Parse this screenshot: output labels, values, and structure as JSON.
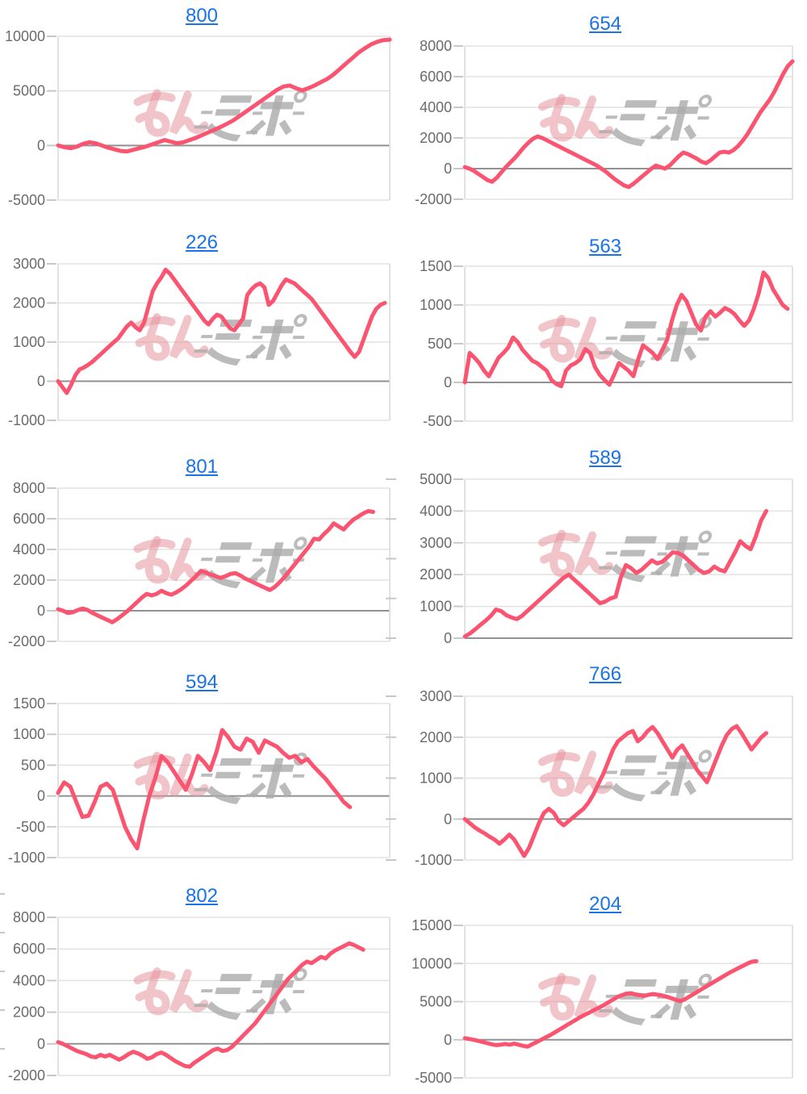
{
  "page": {
    "background": "#ffffff",
    "watermark_text": "みんレポ",
    "description": "grid of slot-machine cumulative payout line charts"
  },
  "colors": {
    "line": "#FA5470",
    "title_link": "#1a73e8",
    "grid": "#e2e2e2",
    "zero_line": "#919191",
    "axis_border": "#dadada",
    "tick": "#c8c8c8",
    "label": "#6b6b6b",
    "watermark_pink": "#e6939e",
    "watermark_gray": "#acacac"
  },
  "chart_data": [
    {
      "type": "line",
      "title": "800",
      "ylim": [
        -5000,
        10000
      ],
      "y_ticks": [
        10000,
        5000,
        0,
        -5000
      ],
      "x_end": 1.0,
      "values": [
        0,
        -150,
        -250,
        -100,
        150,
        300,
        200,
        0,
        -200,
        -350,
        -500,
        -550,
        -400,
        -250,
        -100,
        100,
        300,
        500,
        350,
        200,
        300,
        500,
        700,
        950,
        1200,
        1450,
        1700,
        2000,
        2300,
        2700,
        3100,
        3500,
        3900,
        4300,
        4700,
        5100,
        5400,
        5500,
        5250,
        5050,
        5250,
        5500,
        5800,
        6100,
        6500,
        7000,
        7500,
        8000,
        8500,
        8900,
        9250,
        9500,
        9650,
        9700
      ]
    },
    {
      "type": "line",
      "title": "654",
      "ylim": [
        -2000,
        8000
      ],
      "y_ticks": [
        8000,
        6000,
        4000,
        2000,
        0,
        -2000
      ],
      "x_end": 1.0,
      "values": [
        100,
        0,
        -150,
        -350,
        -550,
        -750,
        -850,
        -600,
        -250,
        100,
        400,
        700,
        1050,
        1400,
        1700,
        1950,
        2100,
        2000,
        1850,
        1700,
        1550,
        1400,
        1250,
        1100,
        950,
        800,
        650,
        500,
        350,
        200,
        0,
        -200,
        -450,
        -700,
        -900,
        -1100,
        -1200,
        -1000,
        -750,
        -500,
        -250,
        0,
        200,
        100,
        0,
        200,
        500,
        800,
        1050,
        950,
        800,
        650,
        450,
        350,
        550,
        800,
        1050,
        1100,
        1050,
        1200,
        1450,
        1800,
        2200,
        2700,
        3200,
        3700,
        4100,
        4500,
        5000,
        5600,
        6200,
        6700,
        7000
      ]
    },
    {
      "type": "line",
      "title": "226",
      "ylim": [
        -1000,
        3000
      ],
      "y_ticks": [
        3000,
        2000,
        1000,
        0,
        -1000
      ],
      "x_end": 0.985,
      "values": [
        0,
        -150,
        -300,
        -100,
        150,
        300,
        350,
        420,
        500,
        600,
        700,
        800,
        900,
        1000,
        1100,
        1250,
        1400,
        1500,
        1380,
        1300,
        1500,
        1900,
        2300,
        2500,
        2650,
        2850,
        2750,
        2600,
        2450,
        2300,
        2150,
        2000,
        1850,
        1700,
        1550,
        1450,
        1600,
        1700,
        1650,
        1500,
        1350,
        1300,
        1450,
        1600,
        2200,
        2350,
        2450,
        2500,
        2400,
        1950,
        2050,
        2250,
        2450,
        2600,
        2550,
        2500,
        2400,
        2300,
        2200,
        2100,
        1950,
        1800,
        1650,
        1500,
        1350,
        1200,
        1050,
        900,
        750,
        620,
        750,
        1050,
        1350,
        1650,
        1850,
        1950,
        2000
      ]
    },
    {
      "type": "line",
      "title": "563",
      "ylim": [
        -500,
        1500
      ],
      "y_ticks": [
        1500,
        1000,
        500,
        0,
        -500
      ],
      "x_end": 0.985,
      "values": [
        0,
        380,
        320,
        250,
        150,
        80,
        200,
        320,
        380,
        450,
        580,
        520,
        420,
        350,
        280,
        250,
        200,
        150,
        30,
        -20,
        -50,
        150,
        220,
        250,
        300,
        430,
        380,
        200,
        100,
        30,
        -30,
        100,
        250,
        200,
        150,
        80,
        300,
        480,
        430,
        380,
        300,
        420,
        550,
        800,
        1000,
        1130,
        1050,
        900,
        750,
        670,
        850,
        920,
        850,
        900,
        960,
        930,
        880,
        800,
        730,
        800,
        950,
        1150,
        1420,
        1350,
        1200,
        1100,
        1000,
        950
      ]
    },
    {
      "type": "line",
      "title": "801",
      "ylim": [
        -2000,
        8000
      ],
      "y_ticks": [
        8000,
        6000,
        4000,
        2000,
        0,
        -2000
      ],
      "x_end": 0.95,
      "values": [
        100,
        0,
        -150,
        -100,
        50,
        150,
        50,
        -150,
        -300,
        -450,
        -600,
        -750,
        -550,
        -300,
        -50,
        250,
        550,
        850,
        1100,
        1000,
        1100,
        1300,
        1150,
        1050,
        1200,
        1400,
        1650,
        1950,
        2250,
        2600,
        2500,
        2350,
        2250,
        2150,
        2250,
        2400,
        2450,
        2300,
        2100,
        1950,
        1800,
        1650,
        1500,
        1350,
        1550,
        1850,
        2200,
        2600,
        3000,
        3400,
        3800,
        4200,
        4700,
        4650,
        5000,
        5300,
        5700,
        5500,
        5300,
        5650,
        5950,
        6150,
        6350,
        6500,
        6450
      ]
    },
    {
      "type": "line",
      "title": "589",
      "ylim": [
        0,
        5000
      ],
      "y_ticks": [
        5000,
        4000,
        3000,
        2000,
        1000,
        0
      ],
      "x_end": 0.92,
      "values": [
        50,
        150,
        280,
        420,
        550,
        700,
        900,
        850,
        720,
        650,
        600,
        700,
        850,
        1000,
        1150,
        1300,
        1450,
        1600,
        1750,
        1900,
        2000,
        1850,
        1700,
        1550,
        1400,
        1250,
        1100,
        1150,
        1250,
        1300,
        1900,
        2300,
        2200,
        2050,
        2150,
        2300,
        2450,
        2350,
        2400,
        2550,
        2700,
        2680,
        2600,
        2450,
        2300,
        2150,
        2050,
        2100,
        2250,
        2150,
        2100,
        2400,
        2700,
        3050,
        2900,
        2800,
        3200,
        3700,
        4000
      ]
    },
    {
      "type": "line",
      "title": "594",
      "ylim": [
        -1000,
        1500
      ],
      "y_ticks": [
        1500,
        1000,
        500,
        0,
        -500,
        -1000
      ],
      "x_end": 0.88,
      "values": [
        50,
        220,
        150,
        -100,
        -340,
        -320,
        -100,
        150,
        200,
        100,
        -200,
        -500,
        -700,
        -850,
        -400,
        0,
        300,
        650,
        550,
        400,
        250,
        100,
        350,
        650,
        550,
        420,
        700,
        1070,
        950,
        800,
        750,
        930,
        880,
        700,
        900,
        850,
        800,
        700,
        620,
        650,
        550,
        600,
        480,
        380,
        280,
        150,
        30,
        -100,
        -180
      ]
    },
    {
      "type": "line",
      "title": "766",
      "ylim": [
        -1000,
        3000
      ],
      "y_ticks": [
        3000,
        2000,
        1000,
        0,
        -1000
      ],
      "x_end": 0.92,
      "values": [
        0,
        -100,
        -200,
        -280,
        -350,
        -430,
        -500,
        -600,
        -500,
        -380,
        -500,
        -700,
        -900,
        -700,
        -400,
        -100,
        150,
        250,
        150,
        -50,
        -150,
        -50,
        50,
        150,
        250,
        400,
        600,
        850,
        1100,
        1400,
        1700,
        1900,
        2000,
        2100,
        2150,
        1900,
        2000,
        2150,
        2250,
        2100,
        1900,
        1700,
        1500,
        1700,
        1800,
        1600,
        1400,
        1200,
        1050,
        900,
        1200,
        1500,
        1800,
        2050,
        2200,
        2270,
        2100,
        1900,
        1700,
        1850,
        2000,
        2100
      ]
    },
    {
      "type": "line",
      "title": "802",
      "ylim": [
        -2000,
        8000
      ],
      "y_ticks": [
        8000,
        6000,
        4000,
        2000,
        0,
        -2000
      ],
      "x_end": 0.92,
      "values": [
        100,
        0,
        -150,
        -300,
        -450,
        -550,
        -650,
        -800,
        -850,
        -700,
        -800,
        -700,
        -850,
        -1000,
        -850,
        -650,
        -500,
        -600,
        -750,
        -950,
        -850,
        -650,
        -550,
        -700,
        -900,
        -1100,
        -1250,
        -1400,
        -1450,
        -1200,
        -1000,
        -800,
        -600,
        -400,
        -300,
        -450,
        -400,
        -200,
        100,
        400,
        700,
        1000,
        1300,
        1700,
        2100,
        2500,
        2900,
        3300,
        3700,
        4100,
        4400,
        4700,
        5000,
        5200,
        5100,
        5300,
        5500,
        5400,
        5700,
        5900,
        6050,
        6200,
        6350,
        6250,
        6100,
        5950
      ]
    },
    {
      "type": "line",
      "title": "204",
      "ylim": [
        -5000,
        15000
      ],
      "y_ticks": [
        15000,
        10000,
        5000,
        0,
        -5000
      ],
      "x_end": 0.89,
      "values": [
        200,
        100,
        0,
        -150,
        -300,
        -450,
        -600,
        -700,
        -650,
        -550,
        -650,
        -500,
        -650,
        -800,
        -900,
        -600,
        -300,
        0,
        300,
        600,
        950,
        1300,
        1650,
        2000,
        2350,
        2700,
        3050,
        3350,
        3650,
        3950,
        4250,
        4550,
        4900,
        5250,
        5600,
        5850,
        6050,
        6100,
        5950,
        5850,
        5750,
        5900,
        6000,
        5900,
        5800,
        5650,
        5450,
        5250,
        5050,
        5300,
        5650,
        6000,
        6350,
        6700,
        7050,
        7400,
        7750,
        8100,
        8450,
        8800,
        9100,
        9400,
        9700,
        10000,
        10250,
        10300
      ]
    }
  ]
}
